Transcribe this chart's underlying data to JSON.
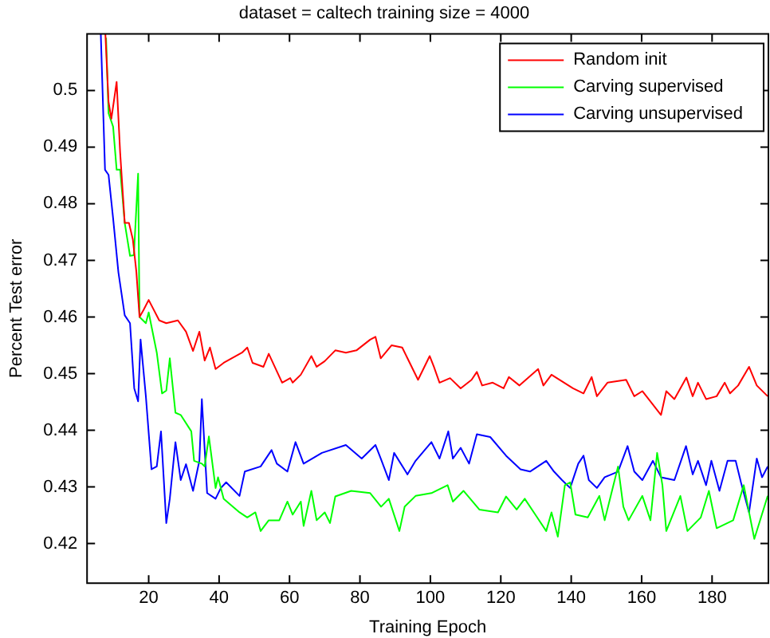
{
  "chart_data": {
    "type": "line",
    "title": "dataset = caltech training size = 4000",
    "xlabel": "Training Epoch",
    "ylabel": "Percent Test error",
    "xlim": [
      2.5,
      196
    ],
    "xticks": [
      20,
      40,
      60,
      80,
      100,
      120,
      140,
      160,
      180
    ],
    "ylim": [
      0.413,
      0.51
    ],
    "yticks": [
      0.42,
      0.43,
      0.44,
      0.45,
      0.46,
      0.47,
      0.48,
      0.49,
      0.5
    ],
    "grid": false,
    "legend": "top right",
    "marker": "none",
    "line_style": "solid",
    "series": [
      {
        "name": "Random init",
        "color": "#ff0000",
        "x": [
          7.7,
          8.6,
          9.4,
          10.9,
          11.9,
          13.2,
          14.4,
          15.5,
          16.5,
          17.4,
          18.5,
          20,
          23,
          25,
          28.3,
          30.6,
          32.6,
          34.4,
          35.9,
          37.4,
          39,
          41.3,
          46.5,
          48,
          49.5,
          52.6,
          54.1,
          57.9,
          60.2,
          60.9,
          63.2,
          66.2,
          67.7,
          70,
          73,
          76,
          79,
          82.9,
          84.4,
          85.9,
          89,
          92,
          93.5,
          96.5,
          99.8,
          101,
          102.6,
          105.6,
          108.6,
          111.7,
          113.2,
          114.7,
          117.7,
          120.8,
          122.3,
          125.3,
          130.6,
          132.1,
          134.4,
          140.5,
          143.5,
          145.8,
          147.3,
          150.3,
          155.6,
          157.9,
          160.2,
          165.5,
          167,
          169.3,
          172.7,
          174.5,
          176,
          178.3,
          181.3,
          183.6,
          185.1,
          187.4,
          190.5,
          192.7,
          195.8
        ],
        "values": [
          0.51,
          0.498,
          0.495,
          0.5015,
          0.489,
          0.4766,
          0.4766,
          0.4737,
          0.468,
          0.46,
          0.4612,
          0.463,
          0.4594,
          0.4589,
          0.4594,
          0.4574,
          0.454,
          0.4574,
          0.4523,
          0.4546,
          0.4508,
          0.4519,
          0.4537,
          0.4546,
          0.4519,
          0.4512,
          0.4535,
          0.4484,
          0.4492,
          0.4484,
          0.4498,
          0.4531,
          0.4512,
          0.4522,
          0.4541,
          0.4537,
          0.4541,
          0.456,
          0.4565,
          0.4527,
          0.455,
          0.4546,
          0.4527,
          0.4489,
          0.4531,
          0.4512,
          0.4484,
          0.4492,
          0.4474,
          0.4489,
          0.4503,
          0.4479,
          0.4484,
          0.4474,
          0.4494,
          0.4479,
          0.4508,
          0.4479,
          0.4498,
          0.4474,
          0.4465,
          0.4494,
          0.446,
          0.4484,
          0.4489,
          0.446,
          0.4469,
          0.4427,
          0.4469,
          0.4455,
          0.4493,
          0.446,
          0.4484,
          0.4455,
          0.446,
          0.4484,
          0.4465,
          0.4479,
          0.4512,
          0.4479,
          0.446
        ]
      },
      {
        "name": "Carving supervised",
        "color": "#00ff00",
        "x": [
          7.9,
          8.6,
          9.9,
          10.9,
          11.9,
          13.2,
          14.7,
          15.8,
          17,
          17.4,
          19.2,
          20,
          22.3,
          23.8,
          25,
          26,
          27.6,
          29.1,
          32.1,
          32.9,
          35.1,
          35.9,
          37.1,
          39,
          39.7,
          41.3,
          45.8,
          48,
          50.3,
          51.8,
          54.1,
          57.1,
          59.4,
          60.9,
          63.2,
          64,
          66.2,
          67.7,
          70,
          71.5,
          73,
          77.5,
          82.9,
          86,
          88.2,
          91.2,
          92.7,
          95.8,
          100.3,
          104.9,
          106.4,
          109.4,
          113.9,
          119.2,
          121.5,
          124.5,
          126.8,
          129.8,
          132.9,
          134.4,
          136.2,
          138.2,
          139.7,
          141.2,
          144.7,
          148,
          149.5,
          153.3,
          154.8,
          156.3,
          160.2,
          162.5,
          164.4,
          165.9,
          167,
          171,
          173,
          176.8,
          179.1,
          181.3,
          186,
          189,
          192,
          195.8
        ],
        "values": [
          0.5093,
          0.496,
          0.4936,
          0.486,
          0.486,
          0.4766,
          0.4708,
          0.4709,
          0.4853,
          0.46,
          0.4589,
          0.4608,
          0.4537,
          0.4465,
          0.447,
          0.4527,
          0.4431,
          0.4427,
          0.4398,
          0.4346,
          0.4341,
          0.4336,
          0.4389,
          0.4298,
          0.4317,
          0.4279,
          0.4255,
          0.4246,
          0.4255,
          0.4222,
          0.4241,
          0.4241,
          0.4274,
          0.4251,
          0.4274,
          0.4231,
          0.4293,
          0.4241,
          0.4255,
          0.4236,
          0.4283,
          0.4293,
          0.4289,
          0.4265,
          0.4279,
          0.4222,
          0.4265,
          0.4284,
          0.4289,
          0.4303,
          0.4274,
          0.4293,
          0.426,
          0.4255,
          0.4283,
          0.426,
          0.4279,
          0.4251,
          0.4222,
          0.4255,
          0.4212,
          0.4303,
          0.4308,
          0.4251,
          0.4246,
          0.4284,
          0.4241,
          0.4336,
          0.4265,
          0.4241,
          0.4284,
          0.4241,
          0.436,
          0.4303,
          0.4222,
          0.4284,
          0.4222,
          0.4246,
          0.4293,
          0.4227,
          0.4241,
          0.4303,
          0.4208,
          0.4284
        ]
      },
      {
        "name": "Carving unsupervised",
        "color": "#0000ff",
        "x": [
          6.4,
          7.6,
          8.6,
          9.9,
          11.4,
          13.2,
          14.7,
          15.9,
          17,
          17.7,
          19.2,
          20.8,
          22.3,
          23.5,
          25,
          26,
          27.6,
          29.1,
          30.6,
          32.6,
          34.4,
          35.1,
          36.6,
          39,
          40.5,
          42,
          45.8,
          47.3,
          51.8,
          54.9,
          56.4,
          59.4,
          61.7,
          64,
          69.2,
          76,
          80.5,
          84.4,
          85.9,
          88.2,
          89.7,
          93.5,
          95.8,
          100.3,
          102.6,
          105.1,
          106.4,
          108.6,
          111,
          113.2,
          117,
          121.5,
          125.6,
          128.3,
          132.9,
          135.1,
          137.4,
          139.7,
          142,
          143.5,
          145,
          147.3,
          149.5,
          153.3,
          156,
          157.9,
          160.2,
          163.2,
          165.5,
          169.3,
          172.6,
          174.5,
          176,
          178.3,
          179.8,
          182.1,
          184.4,
          186.7,
          188.2,
          190.5,
          192.7,
          194.2,
          195.8
        ],
        "values": [
          0.51,
          0.486,
          0.4851,
          0.4774,
          0.4679,
          0.4603,
          0.4589,
          0.4474,
          0.4451,
          0.456,
          0.446,
          0.4331,
          0.4336,
          0.4398,
          0.4236,
          0.4279,
          0.4379,
          0.4312,
          0.434,
          0.4293,
          0.4346,
          0.4455,
          0.4289,
          0.4279,
          0.4298,
          0.4308,
          0.4284,
          0.4327,
          0.4336,
          0.4365,
          0.4341,
          0.4327,
          0.4379,
          0.4341,
          0.436,
          0.4374,
          0.435,
          0.4374,
          0.435,
          0.4312,
          0.436,
          0.4322,
          0.4346,
          0.4379,
          0.435,
          0.4398,
          0.435,
          0.4369,
          0.4341,
          0.4393,
          0.4388,
          0.4355,
          0.4331,
          0.4327,
          0.4346,
          0.4327,
          0.4312,
          0.4298,
          0.4341,
          0.4355,
          0.4312,
          0.4298,
          0.4317,
          0.4327,
          0.4372,
          0.4327,
          0.4312,
          0.4346,
          0.4317,
          0.4312,
          0.4372,
          0.4322,
          0.4346,
          0.4303,
          0.4346,
          0.4293,
          0.4346,
          0.4346,
          0.4308,
          0.4255,
          0.435,
          0.4317,
          0.4336
        ]
      }
    ]
  }
}
